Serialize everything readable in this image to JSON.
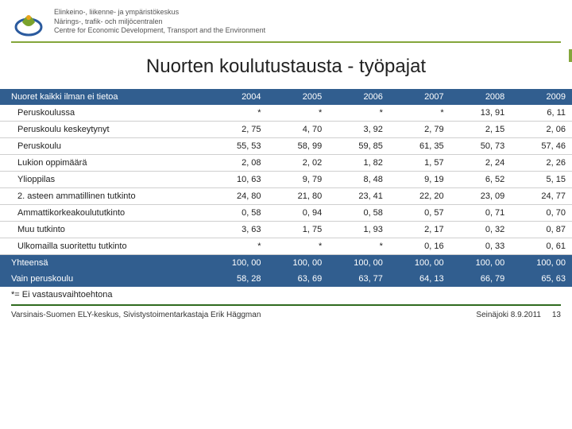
{
  "agency": {
    "line1": "Elinkeino-, liikenne- ja ympäristökeskus",
    "line2": "Närings-, trafik- och miljöcentralen",
    "line3": "Centre for Economic Development, Transport and the Environment"
  },
  "title": "Nuorten koulutustausta - työpajat",
  "table": {
    "header_label": "Nuoret kaikki ilman ei tietoa",
    "years": [
      "2004",
      "2005",
      "2006",
      "2007",
      "2008",
      "2009"
    ],
    "rows": [
      {
        "indent": true,
        "label": "Peruskoulussa",
        "cells": [
          "*",
          "*",
          "*",
          "*",
          "13, 91",
          "6, 11"
        ]
      },
      {
        "indent": true,
        "label": "Peruskoulu keskeytynyt",
        "cells": [
          "2, 75",
          "4, 70",
          "3, 92",
          "2, 79",
          "2, 15",
          "2, 06"
        ]
      },
      {
        "indent": true,
        "label": "Peruskoulu",
        "cells": [
          "55, 53",
          "58, 99",
          "59, 85",
          "61, 35",
          "50, 73",
          "57, 46"
        ]
      },
      {
        "indent": true,
        "label": "Lukion oppimäärä",
        "cells": [
          "2, 08",
          "2, 02",
          "1, 82",
          "1, 57",
          "2, 24",
          "2, 26"
        ]
      },
      {
        "indent": true,
        "label": "Ylioppilas",
        "cells": [
          "10, 63",
          "9, 79",
          "8, 48",
          "9, 19",
          "6, 52",
          "5, 15"
        ]
      },
      {
        "indent": true,
        "label": "2. asteen ammatillinen tutkinto",
        "cells": [
          "24, 80",
          "21, 80",
          "23, 41",
          "22, 20",
          "23, 09",
          "24, 77"
        ]
      },
      {
        "indent": true,
        "label": "Ammattikorkeakoulututkinto",
        "cells": [
          "0, 58",
          "0, 94",
          "0, 58",
          "0, 57",
          "0, 71",
          "0, 70"
        ]
      },
      {
        "indent": true,
        "label": "Muu tutkinto",
        "cells": [
          "3, 63",
          "1, 75",
          "1, 93",
          "2, 17",
          "0, 32",
          "0, 87"
        ]
      },
      {
        "indent": true,
        "label": "Ulkomailla suoritettu tutkinto",
        "cells": [
          "*",
          "*",
          "*",
          "0, 16",
          "0, 33",
          "0, 61"
        ]
      },
      {
        "indent": false,
        "group": true,
        "label": "Yhteensä",
        "cells": [
          "100, 00",
          "100, 00",
          "100, 00",
          "100, 00",
          "100, 00",
          "100, 00"
        ]
      },
      {
        "indent": false,
        "group": true,
        "label": "Vain peruskoulu",
        "cells": [
          "58, 28",
          "63, 69",
          "63, 77",
          "64, 13",
          "66, 79",
          "65, 63"
        ]
      }
    ]
  },
  "footnote": "*= Ei vastausvaihtoehtona",
  "footer": {
    "left": "Varsinais-Suomen ELY-keskus, Sivistystoimentarkastaja Erik Häggman",
    "right_date": "Seinäjoki 8.9.2011",
    "page": "13"
  },
  "style": {
    "header_bg": "#315e8f",
    "header_fg": "#ffffff",
    "row_border": "#cfcfcf",
    "accent_green": "#84a63b",
    "rule_green": "#2f6b1f",
    "title_fontsize": 24,
    "cell_fontsize": 11
  }
}
